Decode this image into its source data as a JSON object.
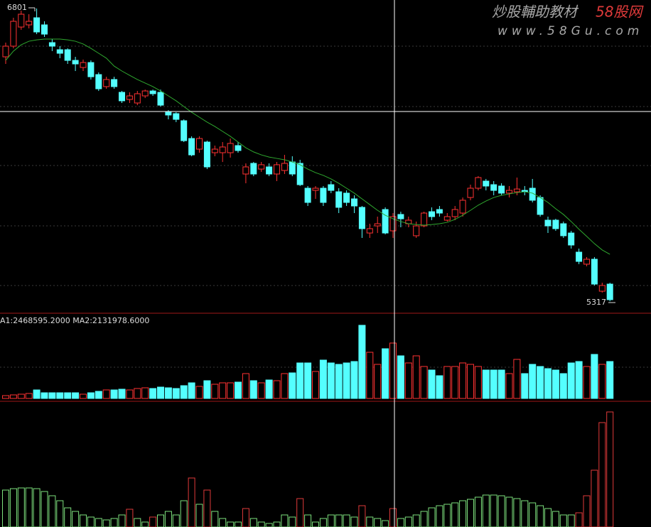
{
  "chart_data": [
    {
      "type": "candlestick",
      "open": [
        6556,
        6610,
        6707,
        6718,
        6754,
        6718,
        6628,
        6592,
        6592,
        6538,
        6502,
        6527,
        6466,
        6405,
        6441,
        6376,
        6340,
        6322,
        6358,
        6383,
        6376,
        6275,
        6268,
        6232,
        6142,
        6088,
        6124,
        6070,
        6070,
        6070,
        6106,
        5962,
        6016,
        5987,
        5998,
        5962,
        5980,
        6023,
        6016,
        5890,
        5879,
        5890,
        5908,
        5872,
        5865,
        5836,
        5793,
        5663,
        5699,
        5782,
        5674,
        5757,
        5710,
        5649,
        5699,
        5771,
        5782,
        5728,
        5746,
        5764,
        5843,
        5890,
        5926,
        5908,
        5901,
        5865,
        5872,
        5879,
        5890,
        5843,
        5728,
        5728,
        5710,
        5663,
        5566,
        5505,
        5530,
        5368,
        5404
      ],
      "close": [
        6610,
        6736,
        6772,
        6736,
        6682,
        6671,
        6610,
        6574,
        6538,
        6520,
        6527,
        6455,
        6394,
        6441,
        6405,
        6333,
        6358,
        6369,
        6383,
        6369,
        6311,
        6261,
        6239,
        6131,
        6059,
        6142,
        5998,
        6088,
        6099,
        6117,
        6081,
        5998,
        5962,
        6009,
        5962,
        6009,
        6016,
        5962,
        5908,
        5818,
        5890,
        5818,
        5879,
        5793,
        5818,
        5800,
        5685,
        5685,
        5710,
        5663,
        5746,
        5735,
        5728,
        5699,
        5764,
        5746,
        5764,
        5746,
        5782,
        5829,
        5890,
        5944,
        5901,
        5879,
        5865,
        5879,
        5886,
        5872,
        5829,
        5757,
        5699,
        5685,
        5649,
        5602,
        5519,
        5530,
        5404,
        5397,
        5325
      ],
      "high": [
        6628,
        6754,
        6790,
        6772,
        6801,
        6736,
        6646,
        6610,
        6599,
        6556,
        6542,
        6538,
        6477,
        6455,
        6455,
        6383,
        6376,
        6383,
        6390,
        6390,
        6390,
        6286,
        6275,
        6239,
        6153,
        6153,
        6131,
        6106,
        6124,
        6142,
        6124,
        6016,
        6023,
        6023,
        6016,
        6023,
        6059,
        6052,
        6034,
        5901,
        5901,
        5901,
        5926,
        5890,
        5879,
        5854,
        5800,
        5710,
        5746,
        5793,
        5764,
        5771,
        5746,
        5721,
        5771,
        5793,
        5800,
        5764,
        5800,
        5843,
        5908,
        5951,
        5937,
        5926,
        5915,
        5901,
        5944,
        5901,
        5937,
        5854,
        5746,
        5735,
        5721,
        5674,
        5584,
        5541,
        5541,
        5411,
        5411
      ],
      "low": [
        6520,
        6599,
        6693,
        6700,
        6671,
        6657,
        6585,
        6549,
        6520,
        6484,
        6484,
        6441,
        6383,
        6394,
        6394,
        6322,
        6322,
        6311,
        6347,
        6358,
        6304,
        6239,
        6225,
        6124,
        6052,
        6070,
        5987,
        6052,
        6023,
        6045,
        6070,
        5915,
        5951,
        5973,
        5951,
        5926,
        5962,
        5951,
        5901,
        5800,
        5836,
        5800,
        5865,
        5764,
        5800,
        5764,
        5638,
        5638,
        5663,
        5656,
        5638,
        5692,
        5692,
        5638,
        5692,
        5728,
        5746,
        5721,
        5728,
        5746,
        5829,
        5879,
        5879,
        5854,
        5854,
        5843,
        5854,
        5854,
        5818,
        5746,
        5663,
        5674,
        5638,
        5584,
        5505,
        5494,
        5397,
        5361,
        5317
      ],
      "up_color": "#ff3232",
      "down_color": "#54ffff",
      "ma": {
        "color": "#2fa82f",
        "values": [
          6538,
          6585,
          6617,
          6635,
          6642,
          6646,
          6646,
          6646,
          6642,
          6635,
          6621,
          6599,
          6574,
          6549,
          6509,
          6484,
          6462,
          6441,
          6423,
          6405,
          6383,
          6358,
          6333,
          6304,
          6275,
          6250,
          6225,
          6203,
          6178,
          6153,
          6124,
          6095,
          6074,
          6059,
          6048,
          6041,
          6034,
          6023,
          6009,
          5987,
          5969,
          5955,
          5937,
          5915,
          5890,
          5865,
          5836,
          5807,
          5778,
          5753,
          5735,
          5721,
          5710,
          5706,
          5703,
          5706,
          5710,
          5717,
          5732,
          5753,
          5778,
          5804,
          5825,
          5843,
          5854,
          5861,
          5868,
          5872,
          5865,
          5843,
          5818,
          5786,
          5757,
          5721,
          5682,
          5646,
          5609,
          5577,
          5555
        ]
      },
      "ylim": [
        5260,
        6844
      ],
      "watermark": {
        "title": "炒股輔助教材",
        "brand": "58股网",
        "url": "www.58Gu.com"
      }
    },
    {
      "type": "bar",
      "label": "A1:2468595.2000 MA2:2131978.6000",
      "values": [
        200000,
        250000,
        300000,
        350000,
        600000,
        400000,
        400000,
        400000,
        400000,
        400000,
        300000,
        400000,
        500000,
        600000,
        600000,
        650000,
        600000,
        700000,
        750000,
        700000,
        800000,
        750000,
        700000,
        900000,
        1100000,
        850000,
        1250000,
        1000000,
        1100000,
        1100000,
        1150000,
        1750000,
        1250000,
        1100000,
        1300000,
        1250000,
        1750000,
        1800000,
        2500000,
        2500000,
        1900000,
        2700000,
        2500000,
        2400000,
        2500000,
        2600000,
        5150000,
        3250000,
        2400000,
        3500000,
        3900000,
        3000000,
        2500000,
        3000000,
        2250000,
        2000000,
        1600000,
        2250000,
        2250000,
        2500000,
        2400000,
        2250000,
        2000000,
        2000000,
        2000000,
        1750000,
        2750000,
        1750000,
        2400000,
        2250000,
        2100000,
        2000000,
        1750000,
        2500000,
        2600000,
        2250000,
        3100000,
        2400000,
        2600000
      ],
      "ylim": [
        0,
        5950000
      ]
    },
    {
      "type": "bar",
      "values": [
        52,
        54,
        55,
        55,
        54,
        50,
        44,
        37,
        27,
        22,
        17,
        14,
        12,
        10,
        12,
        17,
        25,
        12,
        7,
        14,
        17,
        22,
        17,
        37,
        69,
        32,
        52,
        22,
        12,
        7,
        7,
        26,
        12,
        7,
        5,
        7,
        17,
        14,
        40,
        17,
        7,
        12,
        17,
        17,
        17,
        14,
        30,
        14,
        12,
        9,
        26,
        12,
        14,
        17,
        22,
        27,
        30,
        32,
        34,
        37,
        39,
        42,
        45,
        45,
        44,
        42,
        40,
        37,
        34,
        30,
        26,
        22,
        17,
        17,
        20,
        44,
        80,
        147,
        162
      ],
      "colors": [
        "#7de07d",
        "#7de07d",
        "#7de07d",
        "#7de07d",
        "#7de07d",
        "#7de07d",
        "#7de07d",
        "#7de07d",
        "#7de07d",
        "#7de07d",
        "#7de07d",
        "#7de07d",
        "#7de07d",
        "#7de07d",
        "#7de07d",
        "#7de07d",
        "#e03a3a",
        "#7de07d",
        "#7de07d",
        "#e03a3a",
        "#7de07d",
        "#7de07d",
        "#7de07d",
        "#7de07d",
        "#e03a3a",
        "#7de07d",
        "#e03a3a",
        "#7de07d",
        "#7de07d",
        "#7de07d",
        "#7de07d",
        "#e03a3a",
        "#7de07d",
        "#7de07d",
        "#7de07d",
        "#7de07d",
        "#7de07d",
        "#7de07d",
        "#e03a3a",
        "#7de07d",
        "#7de07d",
        "#7de07d",
        "#7de07d",
        "#7de07d",
        "#7de07d",
        "#7de07d",
        "#e03a3a",
        "#7de07d",
        "#7de07d",
        "#7de07d",
        "#e03a3a",
        "#7de07d",
        "#7de07d",
        "#7de07d",
        "#7de07d",
        "#7de07d",
        "#7de07d",
        "#7de07d",
        "#7de07d",
        "#7de07d",
        "#7de07d",
        "#7de07d",
        "#7de07d",
        "#7de07d",
        "#7de07d",
        "#7de07d",
        "#7de07d",
        "#7de07d",
        "#7de07d",
        "#7de07d",
        "#7de07d",
        "#7de07d",
        "#7de07d",
        "#7de07d",
        "#e03a3a",
        "#e03a3a",
        "#e03a3a",
        "#e03a3a",
        "#e03a3a"
      ],
      "ylim": [
        0,
        177
      ]
    }
  ]
}
